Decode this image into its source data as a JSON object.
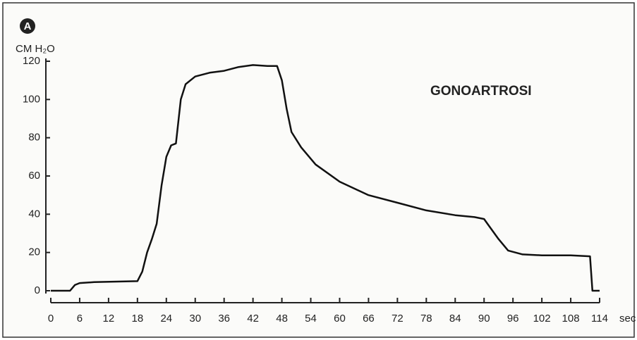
{
  "chart_data": {
    "type": "line",
    "badge": "A",
    "title": "GONOARTROSI",
    "y_label": "CM H₂O",
    "x_label": "sec",
    "color": "#111111",
    "x": [
      0,
      4,
      5,
      6,
      9,
      18,
      19,
      20,
      21,
      22,
      23,
      24,
      25,
      26,
      27,
      28,
      30,
      33,
      36,
      39,
      42,
      45,
      47,
      48,
      49,
      50,
      52,
      55,
      60,
      66,
      72,
      78,
      84,
      88,
      90,
      91,
      93,
      95,
      98,
      102,
      108,
      112,
      112.5,
      114
    ],
    "values": [
      0,
      0,
      3,
      4,
      4.5,
      5,
      10,
      20,
      27,
      35,
      55,
      70,
      76,
      77,
      100,
      108,
      112,
      114,
      115,
      117,
      118,
      117.5,
      117.5,
      110,
      95,
      83,
      75,
      66,
      57,
      50,
      46,
      42,
      39.5,
      38.5,
      37.5,
      34,
      27,
      21,
      19,
      18.5,
      18.5,
      18,
      0,
      0
    ],
    "xlim": [
      0,
      114
    ],
    "xticks": [
      0,
      6,
      12,
      18,
      24,
      30,
      36,
      42,
      48,
      54,
      60,
      66,
      72,
      78,
      84,
      90,
      96,
      102,
      108,
      114
    ],
    "ylim": [
      0,
      120
    ],
    "yticks": [
      0,
      20,
      40,
      60,
      80,
      100,
      120
    ]
  }
}
